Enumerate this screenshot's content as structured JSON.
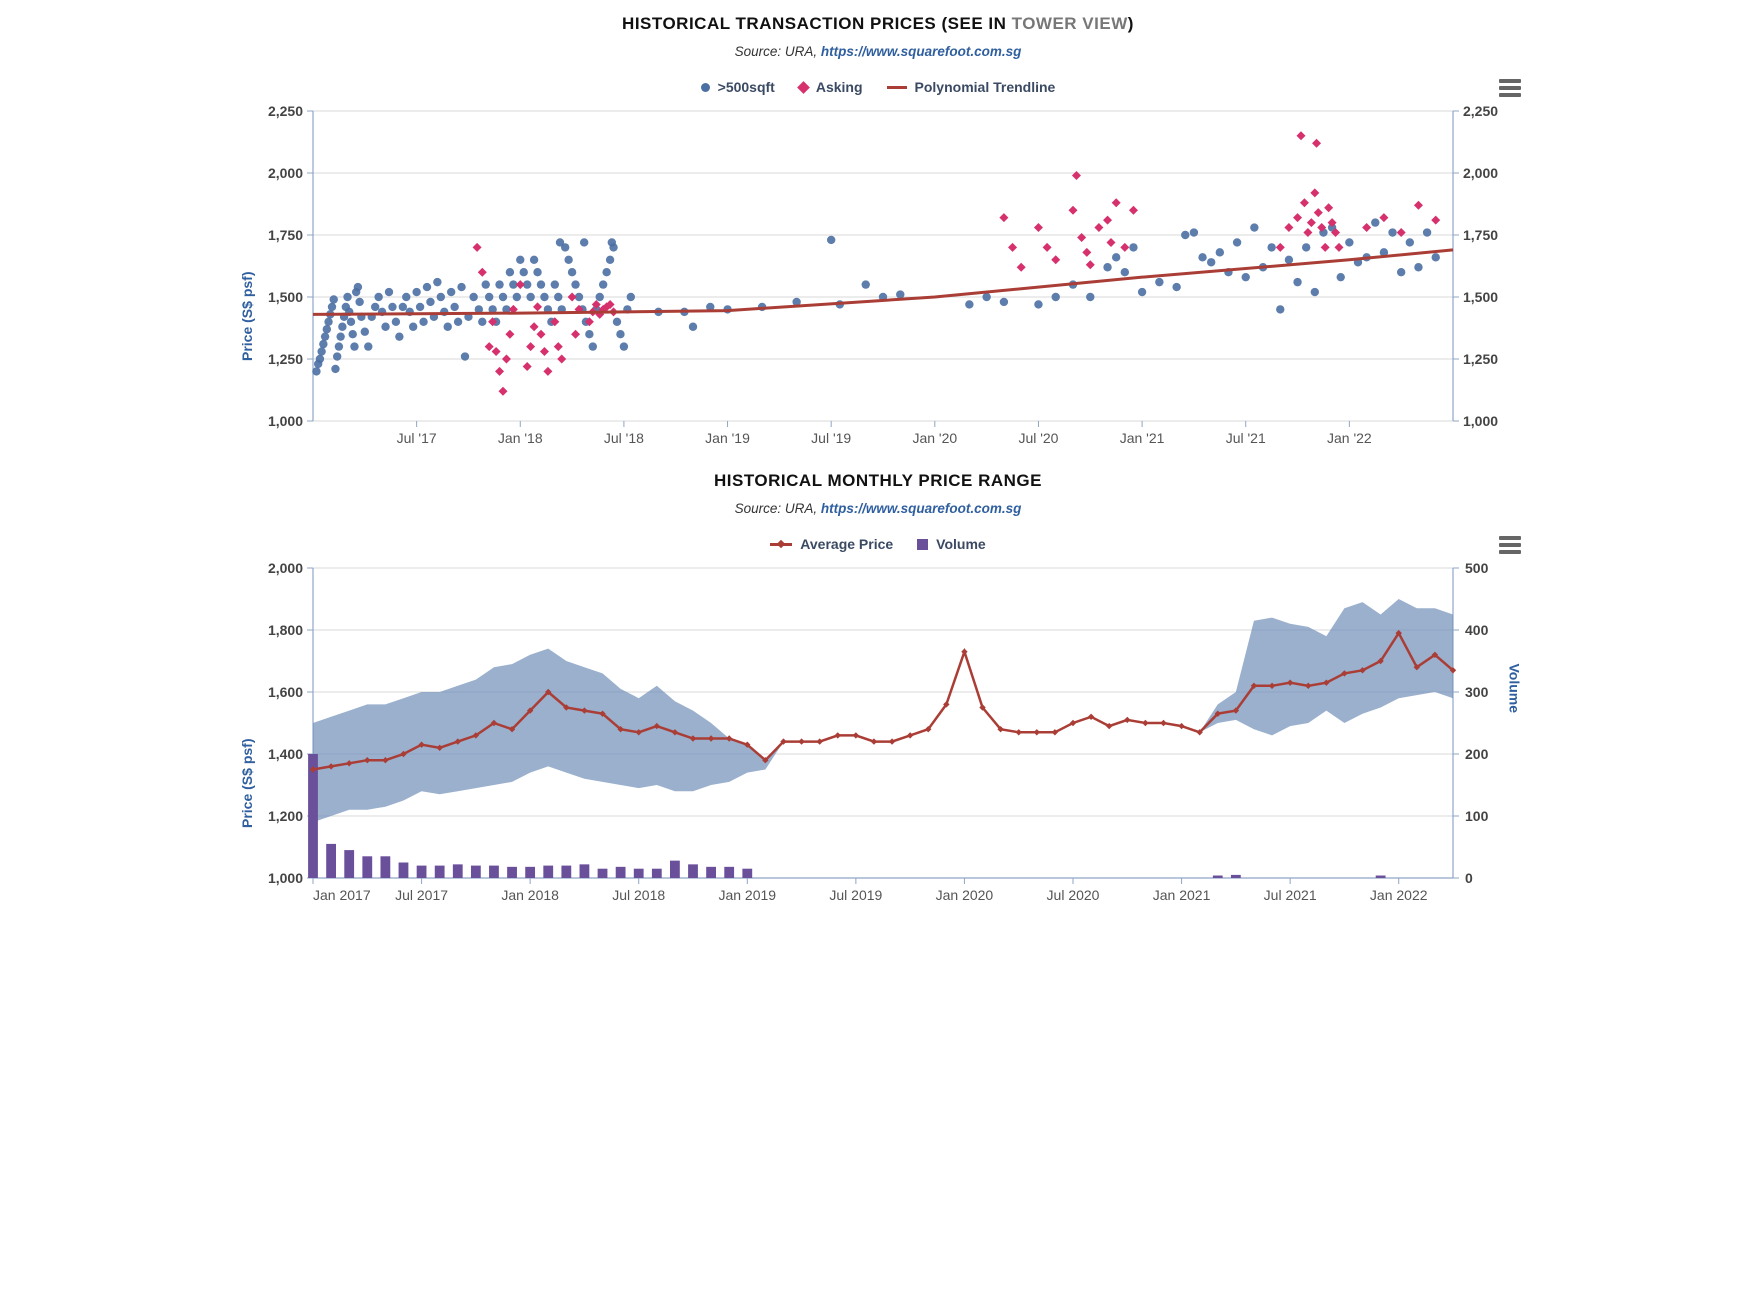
{
  "chart1": {
    "title_prefix": "HISTORICAL TRANSACTION PRICES (SEE IN ",
    "title_link": "TOWER VIEW",
    "title_suffix": ")",
    "source_prefix": "Source: URA, ",
    "source_link": "https://www.squarefoot.com.sg",
    "legend": {
      "a": ">500sqft",
      "b": "Asking",
      "c": "Polynomial Trendline"
    },
    "colors": {
      "series_a": "#4b6fa3",
      "series_b": "#d6316c",
      "trend": "#aa3e36",
      "grid": "#d9d9d9",
      "axis": "#8fa5c7",
      "label": "#2f5f9f"
    },
    "y_label": "Price (S$ psf)",
    "ylim": [
      1000,
      2250
    ],
    "ytick_step": 250,
    "x_ticks": [
      "Jul '17",
      "Jan '18",
      "Jul '18",
      "Jan '19",
      "Jul '19",
      "Jan '20",
      "Jul '20",
      "Jan '21",
      "Jul '21",
      "Jan '22"
    ],
    "x_range_months": 66,
    "trend_xy": [
      [
        0,
        1430
      ],
      [
        12,
        1435
      ],
      [
        24,
        1445
      ],
      [
        36,
        1500
      ],
      [
        48,
        1580
      ],
      [
        60,
        1650
      ],
      [
        66,
        1690
      ]
    ],
    "blue_points": [
      [
        0.2,
        1200
      ],
      [
        0.3,
        1230
      ],
      [
        0.4,
        1250
      ],
      [
        0.5,
        1280
      ],
      [
        0.6,
        1310
      ],
      [
        0.7,
        1340
      ],
      [
        0.8,
        1370
      ],
      [
        0.9,
        1400
      ],
      [
        1.0,
        1430
      ],
      [
        1.1,
        1460
      ],
      [
        1.2,
        1490
      ],
      [
        1.3,
        1210
      ],
      [
        1.4,
        1260
      ],
      [
        1.5,
        1300
      ],
      [
        1.6,
        1340
      ],
      [
        1.7,
        1380
      ],
      [
        1.8,
        1420
      ],
      [
        1.9,
        1460
      ],
      [
        2.0,
        1500
      ],
      [
        2.1,
        1440
      ],
      [
        2.2,
        1400
      ],
      [
        2.3,
        1350
      ],
      [
        2.4,
        1300
      ],
      [
        2.5,
        1520
      ],
      [
        2.6,
        1540
      ],
      [
        2.7,
        1480
      ],
      [
        2.8,
        1420
      ],
      [
        3.0,
        1360
      ],
      [
        3.2,
        1300
      ],
      [
        3.4,
        1420
      ],
      [
        3.6,
        1460
      ],
      [
        3.8,
        1500
      ],
      [
        4.0,
        1440
      ],
      [
        4.2,
        1380
      ],
      [
        4.4,
        1520
      ],
      [
        4.6,
        1460
      ],
      [
        4.8,
        1400
      ],
      [
        5.0,
        1340
      ],
      [
        5.2,
        1460
      ],
      [
        5.4,
        1500
      ],
      [
        5.6,
        1440
      ],
      [
        5.8,
        1380
      ],
      [
        6.0,
        1520
      ],
      [
        6.2,
        1460
      ],
      [
        6.4,
        1400
      ],
      [
        6.6,
        1540
      ],
      [
        6.8,
        1480
      ],
      [
        7.0,
        1420
      ],
      [
        7.2,
        1560
      ],
      [
        7.4,
        1500
      ],
      [
        7.6,
        1440
      ],
      [
        7.8,
        1380
      ],
      [
        8.0,
        1520
      ],
      [
        8.2,
        1460
      ],
      [
        8.4,
        1400
      ],
      [
        8.6,
        1540
      ],
      [
        8.8,
        1260
      ],
      [
        9.0,
        1420
      ],
      [
        9.3,
        1500
      ],
      [
        9.6,
        1450
      ],
      [
        9.8,
        1400
      ],
      [
        10.0,
        1550
      ],
      [
        10.2,
        1500
      ],
      [
        10.4,
        1450
      ],
      [
        10.6,
        1400
      ],
      [
        10.8,
        1550
      ],
      [
        11.0,
        1500
      ],
      [
        11.2,
        1450
      ],
      [
        11.4,
        1600
      ],
      [
        11.6,
        1550
      ],
      [
        11.8,
        1500
      ],
      [
        12.0,
        1650
      ],
      [
        12.2,
        1600
      ],
      [
        12.4,
        1550
      ],
      [
        12.6,
        1500
      ],
      [
        12.8,
        1650
      ],
      [
        13.0,
        1600
      ],
      [
        13.2,
        1550
      ],
      [
        13.4,
        1500
      ],
      [
        13.6,
        1450
      ],
      [
        13.8,
        1400
      ],
      [
        14.0,
        1550
      ],
      [
        14.2,
        1500
      ],
      [
        14.4,
        1450
      ],
      [
        14.6,
        1700
      ],
      [
        14.8,
        1650
      ],
      [
        15.0,
        1600
      ],
      [
        15.2,
        1550
      ],
      [
        15.4,
        1500
      ],
      [
        15.6,
        1450
      ],
      [
        15.8,
        1400
      ],
      [
        16.0,
        1350
      ],
      [
        16.2,
        1300
      ],
      [
        16.4,
        1450
      ],
      [
        16.6,
        1500
      ],
      [
        16.8,
        1550
      ],
      [
        17.0,
        1600
      ],
      [
        17.2,
        1650
      ],
      [
        17.4,
        1700
      ],
      [
        17.3,
        1720
      ],
      [
        15.7,
        1720
      ],
      [
        14.3,
        1720
      ],
      [
        17.6,
        1400
      ],
      [
        17.8,
        1350
      ],
      [
        18.0,
        1300
      ],
      [
        18.2,
        1450
      ],
      [
        18.4,
        1500
      ],
      [
        20.0,
        1440
      ],
      [
        21.5,
        1440
      ],
      [
        22.0,
        1380
      ],
      [
        23.0,
        1460
      ],
      [
        24.0,
        1450
      ],
      [
        26.0,
        1460
      ],
      [
        28.0,
        1480
      ],
      [
        30.0,
        1730
      ],
      [
        30.5,
        1470
      ],
      [
        32.0,
        1550
      ],
      [
        33.0,
        1500
      ],
      [
        34.0,
        1510
      ],
      [
        38.0,
        1470
      ],
      [
        39.0,
        1500
      ],
      [
        40.0,
        1480
      ],
      [
        42.0,
        1470
      ],
      [
        43.0,
        1500
      ],
      [
        44.0,
        1550
      ],
      [
        45.0,
        1500
      ],
      [
        46.0,
        1620
      ],
      [
        46.5,
        1660
      ],
      [
        47.0,
        1600
      ],
      [
        47.5,
        1700
      ],
      [
        48.0,
        1520
      ],
      [
        49.0,
        1560
      ],
      [
        50.0,
        1540
      ],
      [
        50.5,
        1750
      ],
      [
        51.0,
        1760
      ],
      [
        51.5,
        1660
      ],
      [
        52.0,
        1640
      ],
      [
        52.5,
        1680
      ],
      [
        53.0,
        1600
      ],
      [
        53.5,
        1720
      ],
      [
        54.0,
        1580
      ],
      [
        54.5,
        1780
      ],
      [
        55.0,
        1620
      ],
      [
        55.5,
        1700
      ],
      [
        56.0,
        1450
      ],
      [
        56.5,
        1650
      ],
      [
        57.0,
        1560
      ],
      [
        57.5,
        1700
      ],
      [
        58.0,
        1520
      ],
      [
        58.5,
        1760
      ],
      [
        59.0,
        1780
      ],
      [
        59.5,
        1580
      ],
      [
        60.0,
        1720
      ],
      [
        60.5,
        1640
      ],
      [
        61.0,
        1660
      ],
      [
        61.5,
        1800
      ],
      [
        62.0,
        1680
      ],
      [
        62.5,
        1760
      ],
      [
        63.0,
        1600
      ],
      [
        63.5,
        1720
      ],
      [
        64.0,
        1620
      ],
      [
        64.5,
        1760
      ],
      [
        65.0,
        1660
      ]
    ],
    "pink_points": [
      [
        9.5,
        1700
      ],
      [
        9.8,
        1600
      ],
      [
        10.2,
        1300
      ],
      [
        10.4,
        1400
      ],
      [
        10.6,
        1280
      ],
      [
        10.8,
        1200
      ],
      [
        11.0,
        1120
      ],
      [
        11.2,
        1250
      ],
      [
        11.4,
        1350
      ],
      [
        11.6,
        1450
      ],
      [
        12.0,
        1550
      ],
      [
        12.4,
        1220
      ],
      [
        12.6,
        1300
      ],
      [
        12.8,
        1380
      ],
      [
        13.0,
        1460
      ],
      [
        13.2,
        1350
      ],
      [
        13.4,
        1280
      ],
      [
        13.6,
        1200
      ],
      [
        14.0,
        1400
      ],
      [
        14.2,
        1300
      ],
      [
        14.4,
        1250
      ],
      [
        15.0,
        1500
      ],
      [
        15.2,
        1350
      ],
      [
        15.4,
        1450
      ],
      [
        16.0,
        1400
      ],
      [
        16.2,
        1440
      ],
      [
        16.4,
        1470
      ],
      [
        16.6,
        1430
      ],
      [
        16.8,
        1450
      ],
      [
        17.0,
        1460
      ],
      [
        17.2,
        1470
      ],
      [
        17.4,
        1440
      ],
      [
        40.0,
        1820
      ],
      [
        40.5,
        1700
      ],
      [
        41.0,
        1620
      ],
      [
        42.0,
        1780
      ],
      [
        42.5,
        1700
      ],
      [
        43.0,
        1650
      ],
      [
        44.0,
        1850
      ],
      [
        44.2,
        1990
      ],
      [
        44.5,
        1740
      ],
      [
        44.8,
        1680
      ],
      [
        45.0,
        1630
      ],
      [
        45.5,
        1780
      ],
      [
        46.0,
        1810
      ],
      [
        46.2,
        1720
      ],
      [
        46.5,
        1880
      ],
      [
        47.0,
        1700
      ],
      [
        47.5,
        1850
      ],
      [
        56.0,
        1700
      ],
      [
        56.5,
        1780
      ],
      [
        57.0,
        1820
      ],
      [
        57.2,
        2150
      ],
      [
        57.4,
        1880
      ],
      [
        57.6,
        1760
      ],
      [
        57.8,
        1800
      ],
      [
        58.0,
        1920
      ],
      [
        58.1,
        2120
      ],
      [
        58.2,
        1840
      ],
      [
        58.4,
        1780
      ],
      [
        58.6,
        1700
      ],
      [
        58.8,
        1860
      ],
      [
        59.0,
        1800
      ],
      [
        59.2,
        1760
      ],
      [
        59.4,
        1700
      ],
      [
        61.0,
        1780
      ],
      [
        62.0,
        1820
      ],
      [
        63.0,
        1760
      ],
      [
        64.0,
        1870
      ],
      [
        65.0,
        1810
      ]
    ]
  },
  "chart2": {
    "title": "HISTORICAL MONTHLY PRICE RANGE",
    "source_prefix": "Source: URA, ",
    "source_link": "https://www.squarefoot.com.sg",
    "legend": {
      "a": "Average Price",
      "b": "Volume"
    },
    "colors": {
      "line": "#aa3e36",
      "band": "#6f8fb8",
      "band_opacity": 0.7,
      "bar": "#6a4f9a",
      "grid": "#d9d9d9",
      "axis": "#8fa5c7",
      "label": "#2f5f9f"
    },
    "y1_label": "Price (S$ psf)",
    "y2_label": "Volume",
    "y1_lim": [
      1000,
      2000
    ],
    "y1_step": 200,
    "y2_lim": [
      0,
      500
    ],
    "y2_step": 100,
    "x_ticks": [
      "Jan 2017",
      "Jul 2017",
      "Jan 2018",
      "Jul 2018",
      "Jan 2019",
      "Jul 2019",
      "Jan 2020",
      "Jul 2020",
      "Jan 2021",
      "Jul 2021",
      "Jan 2022"
    ],
    "n_months": 64,
    "avg": [
      1350,
      1360,
      1370,
      1380,
      1380,
      1400,
      1430,
      1420,
      1440,
      1460,
      1500,
      1480,
      1540,
      1600,
      1550,
      1540,
      1530,
      1480,
      1470,
      1490,
      1470,
      1450,
      1450,
      1450,
      1430,
      1380,
      1440,
      1440,
      1440,
      1460,
      1460,
      1440,
      1440,
      1460,
      1480,
      1560,
      1730,
      1550,
      1480,
      1470,
      1470,
      1470,
      1500,
      1520,
      1490,
      1510,
      1500,
      1500,
      1490,
      1470,
      1530,
      1540,
      1620,
      1620,
      1630,
      1620,
      1630,
      1660,
      1670,
      1700,
      1790,
      1680,
      1720,
      1670
    ],
    "low": [
      1180,
      1200,
      1220,
      1220,
      1230,
      1250,
      1280,
      1270,
      1280,
      1290,
      1300,
      1310,
      1340,
      1360,
      1340,
      1320,
      1310,
      1300,
      1290,
      1300,
      1280,
      1280,
      1300,
      1310,
      1340,
      1350,
      1440,
      1440,
      1440,
      1460,
      1460,
      1440,
      1440,
      1460,
      1480,
      1560,
      1730,
      1550,
      1480,
      1470,
      1470,
      1470,
      1500,
      1520,
      1490,
      1510,
      1500,
      1500,
      1490,
      1470,
      1500,
      1510,
      1480,
      1460,
      1490,
      1500,
      1540,
      1500,
      1530,
      1550,
      1580,
      1590,
      1600,
      1580
    ],
    "high": [
      1500,
      1520,
      1540,
      1560,
      1560,
      1580,
      1600,
      1600,
      1620,
      1640,
      1680,
      1690,
      1720,
      1740,
      1700,
      1680,
      1660,
      1610,
      1580,
      1620,
      1570,
      1540,
      1500,
      1450,
      1430,
      1380,
      1440,
      1440,
      1440,
      1460,
      1460,
      1440,
      1440,
      1460,
      1480,
      1560,
      1730,
      1550,
      1480,
      1470,
      1470,
      1470,
      1500,
      1520,
      1490,
      1510,
      1500,
      1500,
      1490,
      1470,
      1560,
      1600,
      1830,
      1840,
      1820,
      1810,
      1780,
      1870,
      1890,
      1850,
      1900,
      1870,
      1870,
      1850
    ],
    "volume": [
      200,
      55,
      45,
      35,
      35,
      25,
      20,
      20,
      22,
      20,
      20,
      18,
      18,
      20,
      20,
      22,
      15,
      18,
      15,
      15,
      28,
      22,
      18,
      18,
      15,
      0,
      0,
      0,
      0,
      0,
      0,
      0,
      0,
      0,
      0,
      0,
      0,
      0,
      0,
      0,
      0,
      0,
      0,
      0,
      0,
      0,
      0,
      0,
      0,
      0,
      4,
      5,
      0,
      0,
      0,
      0,
      0,
      0,
      0,
      4,
      0,
      0,
      0,
      0
    ]
  }
}
